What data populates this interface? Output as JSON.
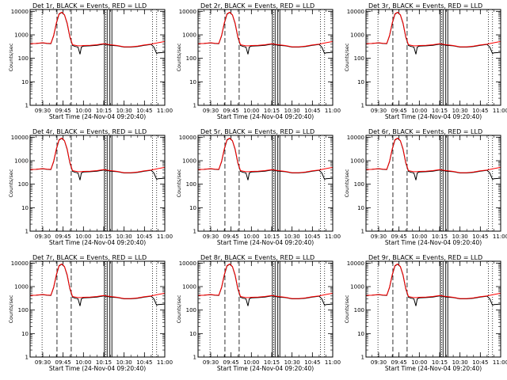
{
  "chart_data": {
    "type": "line",
    "xlabel": "Start Time (24-Nov-04 09:20:40)",
    "ylabel": "Counts/sec",
    "x_ticks": [
      "09:30",
      "09:45",
      "10:00",
      "10:15",
      "10:30",
      "10:45",
      "11:00"
    ],
    "y_ticks": [
      "1",
      "10",
      "100",
      "1000",
      "10000"
    ],
    "x_range": [
      "09:20:40",
      "11:00:00"
    ],
    "y_range": [
      1,
      12000
    ],
    "y_scale": "log",
    "colors": {
      "events": "#000000",
      "lld": "#ff0000"
    },
    "dashed_lines": [
      "09:40:30",
      "09:51:00"
    ],
    "dotted_lines": [
      "09:29:30",
      "10:16:30",
      "10:51:00",
      "10:54:00"
    ],
    "solid_bars": [
      [
        "10:15:30",
        "10:17:30"
      ],
      [
        "10:19:30",
        "10:21:00"
      ]
    ],
    "panels": [
      {
        "title": "Det  1r, BLACK = Events, RED = LLD"
      },
      {
        "title": "Det  2r, BLACK = Events, RED = LLD"
      },
      {
        "title": "Det  3r, BLACK = Events, RED = LLD"
      },
      {
        "title": "Det  4r, BLACK = Events, RED = LLD"
      },
      {
        "title": "Det  5r, BLACK = Events, RED = LLD"
      },
      {
        "title": "Det  6r, BLACK = Events, RED = LLD"
      },
      {
        "title": "Det  7r, BLACK = Events, RED = LLD"
      },
      {
        "title": "Det  8r, BLACK = Events, RED = LLD"
      },
      {
        "title": "Det  9r, BLACK = Events, RED = LLD"
      }
    ],
    "events": {
      "x": [
        "09:20:40",
        "09:25:00",
        "09:30:00",
        "09:33:00",
        "09:36:00",
        "09:38:00",
        "09:40:00",
        "09:42:00",
        "09:44:00",
        "09:46:00",
        "09:48:00",
        "09:50:00",
        "09:52:00",
        "09:54:00",
        "09:56:00",
        "09:57:30",
        "09:58:30",
        "10:00:00",
        "10:05:00",
        "10:10:00",
        "10:15:00",
        "10:20:00",
        "10:25:00",
        "10:30:00",
        "10:35:00",
        "10:40:00",
        "10:45:00",
        "10:50:00",
        "10:52:00",
        "10:54:00",
        "10:55:00",
        "11:00:00"
      ],
      "y": [
        420,
        430,
        450,
        430,
        420,
        900,
        3000,
        7500,
        9000,
        7000,
        3000,
        800,
        350,
        320,
        300,
        150,
        300,
        330,
        340,
        360,
        400,
        360,
        340,
        300,
        300,
        320,
        360,
        390,
        300,
        160,
        170,
        180
      ]
    },
    "lld": {
      "x": [
        "09:20:40",
        "09:25:00",
        "09:30:00",
        "09:33:00",
        "09:36:00",
        "09:38:00",
        "09:40:00",
        "09:42:00",
        "09:44:00",
        "09:46:00",
        "09:48:00",
        "09:50:00",
        "09:52:00",
        "09:54:00",
        "09:56:00",
        "09:58:00",
        "10:00:00",
        "10:05:00",
        "10:10:00",
        "10:15:00",
        "10:20:00",
        "10:25:00",
        "10:30:00",
        "10:35:00",
        "10:40:00",
        "10:45:00",
        "10:50:00",
        "10:55:00",
        "11:00:00"
      ],
      "y": [
        420,
        430,
        460,
        440,
        430,
        950,
        3200,
        7800,
        9200,
        7200,
        3200,
        850,
        380,
        360,
        340,
        340,
        350,
        360,
        380,
        420,
        380,
        350,
        310,
        310,
        330,
        370,
        400,
        460,
        520
      ]
    }
  }
}
